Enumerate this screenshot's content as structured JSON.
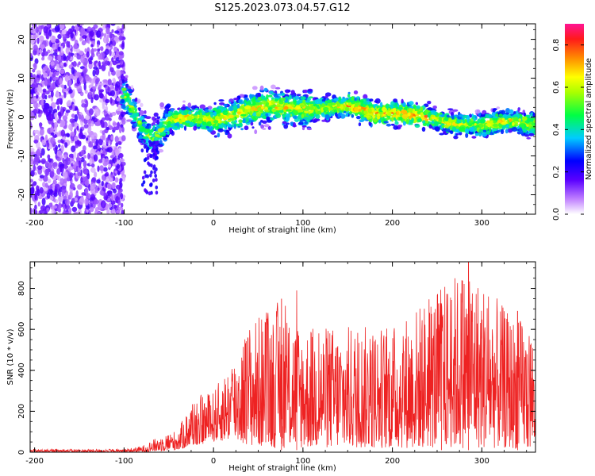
{
  "title": "S125.2023.073.04.57.G12",
  "chart_data": [
    {
      "type": "heatmap",
      "xlabel": "Height of straight line (km)",
      "ylabel": "Frequency (Hz)",
      "xlim": [
        -205,
        360
      ],
      "ylim": [
        -25,
        24
      ],
      "xticks": [
        -200,
        -100,
        0,
        100,
        200,
        300
      ],
      "yticks": [
        -20,
        -10,
        0,
        10,
        20
      ],
      "colorbar": {
        "label": "Normalized spectral amplitude",
        "range": [
          0,
          0.9
        ],
        "ticks": [
          0.0,
          0.2,
          0.4,
          0.6,
          0.8
        ],
        "colormap": [
          "#ffffff",
          "#8a2be2",
          "#0000ff",
          "#00e5ff",
          "#00ff00",
          "#ffff00",
          "#ff8c00",
          "#ff0000",
          "#ff1493"
        ]
      },
      "ridge": [
        {
          "x": -205,
          "y": 0
        },
        {
          "x": -100,
          "y": 6
        },
        {
          "x": -90,
          "y": 2
        },
        {
          "x": -80,
          "y": -3
        },
        {
          "x": -70,
          "y": -6
        },
        {
          "x": -60,
          "y": -4
        },
        {
          "x": -50,
          "y": -1
        },
        {
          "x": -30,
          "y": 0
        },
        {
          "x": 0,
          "y": -1
        },
        {
          "x": 30,
          "y": 1
        },
        {
          "x": 60,
          "y": 3
        },
        {
          "x": 90,
          "y": 2
        },
        {
          "x": 120,
          "y": 2
        },
        {
          "x": 150,
          "y": 3
        },
        {
          "x": 180,
          "y": 1
        },
        {
          "x": 210,
          "y": 1
        },
        {
          "x": 240,
          "y": 0
        },
        {
          "x": 270,
          "y": -2
        },
        {
          "x": 300,
          "y": -2
        },
        {
          "x": 330,
          "y": -1
        },
        {
          "x": 360,
          "y": -2
        }
      ]
    },
    {
      "type": "line",
      "xlabel": "Height of straight line (km)",
      "ylabel": "SNR (10 * v/v)",
      "xlim": [
        -205,
        360
      ],
      "ylim": [
        0,
        930
      ],
      "xticks": [
        -200,
        -100,
        0,
        100,
        200,
        300
      ],
      "yticks": [
        0,
        200,
        400,
        600,
        800
      ],
      "series": [
        {
          "color": "#ee2222",
          "envelope": [
            {
              "x": -205,
              "low": 0,
              "high": 15
            },
            {
              "x": -100,
              "low": 0,
              "high": 15
            },
            {
              "x": -80,
              "low": 0,
              "high": 30
            },
            {
              "x": -60,
              "low": 5,
              "high": 80
            },
            {
              "x": -40,
              "low": 10,
              "high": 110
            },
            {
              "x": -22,
              "low": 30,
              "high": 270
            },
            {
              "x": 0,
              "low": 50,
              "high": 300
            },
            {
              "x": 20,
              "low": 60,
              "high": 450
            },
            {
              "x": 40,
              "low": 30,
              "high": 640
            },
            {
              "x": 75,
              "low": 20,
              "high": 750
            },
            {
              "x": 100,
              "low": 20,
              "high": 620
            },
            {
              "x": 200,
              "low": 20,
              "high": 620
            },
            {
              "x": 285,
              "low": 20,
              "high": 930
            },
            {
              "x": 330,
              "low": 20,
              "high": 680
            },
            {
              "x": 360,
              "low": 10,
              "high": 620
            }
          ],
          "peaks": [
            {
              "x": 76,
              "y": 750
            },
            {
              "x": 93,
              "y": 790
            },
            {
              "x": 285,
              "y": 930
            },
            {
              "x": 255,
              "y": 710
            },
            {
              "x": 340,
              "y": 690
            }
          ]
        }
      ]
    }
  ]
}
